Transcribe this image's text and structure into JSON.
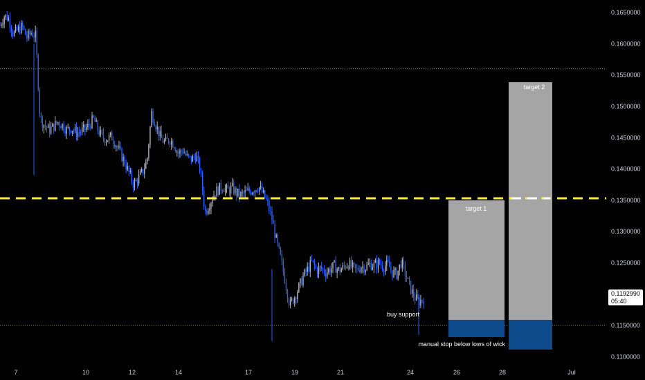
{
  "colors": {
    "background": "#000000",
    "candle": "#2962ff",
    "candle_alt": "#b2b5be",
    "support_line": "#ffeb3b",
    "dotted_line": "#8a8a3a",
    "target_box": "#a5a5a5",
    "stop_box": "#0d4a8c"
  },
  "chart_data": {
    "type": "candlestick",
    "y_axis": {
      "ylim": [
        0.1085,
        0.167
      ],
      "tick_labels": [
        "0.1650000",
        "0.1600000",
        "0.1550000",
        "0.1500000",
        "0.1450000",
        "0.1400000",
        "0.1350000",
        "0.1300000",
        "0.1250000",
        "0.1200000",
        "0.1150000",
        "0.1100000"
      ]
    },
    "x_axis": {
      "tick_labels": [
        "7",
        "10",
        "12",
        "14",
        "17",
        "19",
        "21",
        "24",
        "26",
        "28",
        "Jul"
      ]
    },
    "price_path": [
      0.163,
      0.1645,
      0.164,
      0.1615,
      0.1622,
      0.1628,
      0.161,
      0.1618,
      0.1612,
      0.148,
      0.147,
      0.1462,
      0.1468,
      0.1475,
      0.147,
      0.1462,
      0.1466,
      0.1458,
      0.146,
      0.1463,
      0.147,
      0.148,
      0.1462,
      0.145,
      0.1448,
      0.1452,
      0.144,
      0.1425,
      0.141,
      0.1392,
      0.1375,
      0.1385,
      0.1395,
      0.1415,
      0.149,
      0.147,
      0.145,
      0.1442,
      0.1448,
      0.144,
      0.1425,
      0.143,
      0.1418,
      0.1415,
      0.1422,
      0.1395,
      0.133,
      0.1345,
      0.136,
      0.1368,
      0.1372,
      0.1365,
      0.137,
      0.1362,
      0.1358,
      0.1362,
      0.1365,
      0.1368,
      0.1372,
      0.136,
      0.1345,
      0.132,
      0.1285,
      0.1255,
      0.122,
      0.1182,
      0.1195,
      0.121,
      0.1228,
      0.124,
      0.1252,
      0.1238,
      0.1242,
      0.1235,
      0.124,
      0.1245,
      0.1238,
      0.1242,
      0.125,
      0.1242,
      0.1238,
      0.1245,
      0.1243,
      0.1248,
      0.1246,
      0.125,
      0.1244,
      0.1248,
      0.1235,
      0.1232,
      0.1252,
      0.123,
      0.121,
      0.1195,
      0.1188,
      0.1193
    ],
    "current_price": "0.1192990",
    "countdown": "05:40",
    "support_level": 0.1355,
    "buy_level": 0.115,
    "stop_level": 0.11,
    "target1_level": 0.135,
    "target2_level": 0.155,
    "dotted_levels": [
      0.156,
      0.115
    ]
  },
  "annotations": {
    "target1": "target 1",
    "target2": "target 2",
    "buy": "buy support",
    "stop": "manual stop below lows of wick"
  }
}
